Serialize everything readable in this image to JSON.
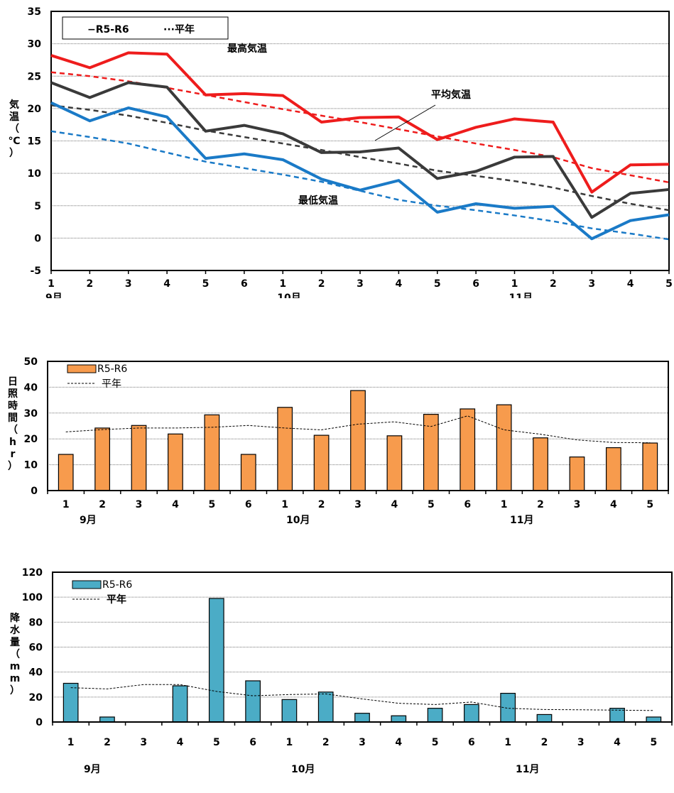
{
  "chart_data": [
    {
      "type": "line",
      "title": "",
      "xlabel": "",
      "ylabel": "気温（℃）",
      "ylim": [
        -5,
        35
      ],
      "yticks": [
        -5,
        0,
        5,
        10,
        15,
        20,
        25,
        30,
        35
      ],
      "categories": [
        "1",
        "2",
        "3",
        "4",
        "5",
        "6",
        "1",
        "2",
        "3",
        "4",
        "5",
        "6",
        "1",
        "2",
        "3",
        "4",
        "5"
      ],
      "month_labels": [
        "9月",
        "10月",
        "11月"
      ],
      "legend": {
        "placement": "top-left",
        "actual": "−R5-R6",
        "normal": "···平年"
      },
      "annotations": [
        "最高気温",
        "平均気温",
        "最低気温"
      ],
      "grid": true,
      "series": [
        {
          "name": "最高気温",
          "kind": "actual",
          "color": "#ee1c1c",
          "values": [
            28.2,
            26.3,
            28.6,
            28.4,
            22.1,
            22.3,
            22.0,
            17.9,
            18.6,
            18.7,
            15.2,
            17.1,
            18.4,
            17.9,
            7.1,
            11.3,
            11.4
          ]
        },
        {
          "name": "最高気温",
          "kind": "normal",
          "color": "#ee1c1c",
          "values": [
            25.6,
            25.0,
            24.2,
            23.2,
            22.1,
            21.0,
            19.9,
            18.9,
            17.9,
            16.8,
            15.7,
            14.6,
            13.6,
            12.5,
            10.8,
            9.7,
            8.6
          ]
        },
        {
          "name": "平均気温",
          "kind": "actual",
          "color": "#3a3a3a",
          "values": [
            24.0,
            21.7,
            24.0,
            23.3,
            16.5,
            17.4,
            16.1,
            13.2,
            13.3,
            13.9,
            9.2,
            10.3,
            12.5,
            12.6,
            3.2,
            6.9,
            7.5
          ]
        },
        {
          "name": "平均気温",
          "kind": "normal",
          "color": "#3a3a3a",
          "values": [
            20.5,
            19.8,
            18.9,
            17.8,
            16.6,
            15.6,
            14.6,
            13.6,
            12.5,
            11.5,
            10.4,
            9.6,
            8.8,
            7.8,
            6.5,
            5.3,
            4.3
          ]
        },
        {
          "name": "最低気温",
          "kind": "actual",
          "color": "#1a7ac7",
          "values": [
            20.9,
            18.1,
            20.1,
            18.7,
            12.3,
            13.0,
            12.1,
            9.1,
            7.4,
            8.9,
            4.0,
            5.3,
            4.6,
            4.9,
            -0.1,
            2.7,
            3.6
          ]
        },
        {
          "name": "最低気温",
          "kind": "normal",
          "color": "#1a7ac7",
          "values": [
            16.5,
            15.6,
            14.6,
            13.2,
            11.8,
            10.8,
            9.8,
            8.7,
            7.3,
            5.9,
            5.0,
            4.3,
            3.5,
            2.6,
            1.5,
            0.7,
            -0.2
          ]
        }
      ]
    },
    {
      "type": "bar",
      "title": "",
      "xlabel": "",
      "ylabel": "日照時間（hr）",
      "ylim": [
        0,
        50
      ],
      "yticks": [
        0,
        10,
        20,
        30,
        40,
        50
      ],
      "categories": [
        "1",
        "2",
        "3",
        "4",
        "5",
        "6",
        "1",
        "2",
        "3",
        "4",
        "5",
        "6",
        "1",
        "2",
        "3",
        "4",
        "5"
      ],
      "month_labels": [
        "9月",
        "10月",
        "11月"
      ],
      "legend": {
        "placement": "top-left",
        "actual": "R5-R6",
        "normal": "平年"
      },
      "grid": true,
      "bar_color": "#f79b4d",
      "values": [
        14,
        24.2,
        25.2,
        21.9,
        29.3,
        14,
        32.2,
        21.4,
        38.7,
        21.2,
        29.5,
        31.6,
        33.2,
        20.4,
        13,
        16.6,
        18.4
      ],
      "normal": [
        22.7,
        23.6,
        24.2,
        24.2,
        24.5,
        25.2,
        24.2,
        23.5,
        25.7,
        26.6,
        24.8,
        28.9,
        23.5,
        21.8,
        19.6,
        18.6,
        18.5
      ]
    },
    {
      "type": "bar",
      "title": "",
      "xlabel": "",
      "ylabel": "降水量（mm）",
      "ylim": [
        0,
        120
      ],
      "yticks": [
        0,
        20,
        40,
        60,
        80,
        100,
        120
      ],
      "categories": [
        "1",
        "2",
        "3",
        "4",
        "5",
        "6",
        "1",
        "2",
        "3",
        "4",
        "5",
        "6",
        "1",
        "2",
        "3",
        "4",
        "5"
      ],
      "month_labels": [
        "9月",
        "10月",
        "11月"
      ],
      "legend": {
        "placement": "top-left",
        "actual": "R5-R6",
        "normal": "平年"
      },
      "grid": true,
      "bar_color": "#4bacc6",
      "values": [
        31,
        4,
        0,
        29,
        99,
        33,
        18,
        24,
        7,
        5,
        11,
        14,
        23,
        6,
        0,
        11,
        4
      ],
      "normal": [
        27.5,
        26.5,
        30,
        30,
        24.5,
        21,
        22,
        22.5,
        18.5,
        15,
        14,
        16,
        11,
        10,
        9.8,
        9.5,
        9.2
      ]
    }
  ]
}
